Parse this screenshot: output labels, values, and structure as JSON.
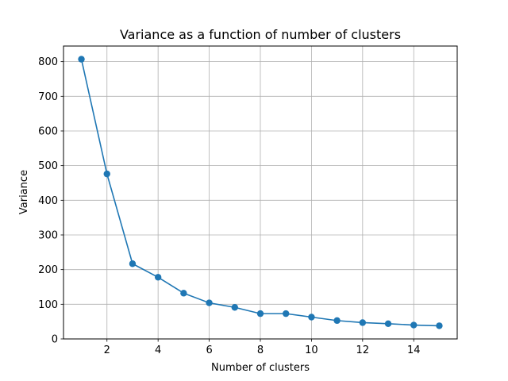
{
  "chart_data": {
    "type": "line",
    "title": "Variance as a function of number of clusters",
    "xlabel": "Number of clusters",
    "ylabel": "Variance",
    "xlim": [
      0.3,
      15.7
    ],
    "ylim": [
      0,
      845
    ],
    "x_ticks": [
      2,
      4,
      6,
      8,
      10,
      12,
      14
    ],
    "y_ticks": [
      0,
      100,
      200,
      300,
      400,
      500,
      600,
      700,
      800
    ],
    "grid": true,
    "marker": "circle",
    "series": [
      {
        "color": "#1f77b4",
        "x": [
          1,
          2,
          3,
          4,
          5,
          6,
          7,
          8,
          9,
          10,
          11,
          12,
          13,
          14,
          15
        ],
        "y": [
          807,
          476,
          217,
          178,
          132,
          104,
          91,
          73,
          73,
          63,
          53,
          47,
          44,
          40,
          38
        ]
      }
    ]
  },
  "colors": {
    "series": "#1f77b4",
    "grid": "#b0b0b0",
    "axes": "#000000"
  }
}
